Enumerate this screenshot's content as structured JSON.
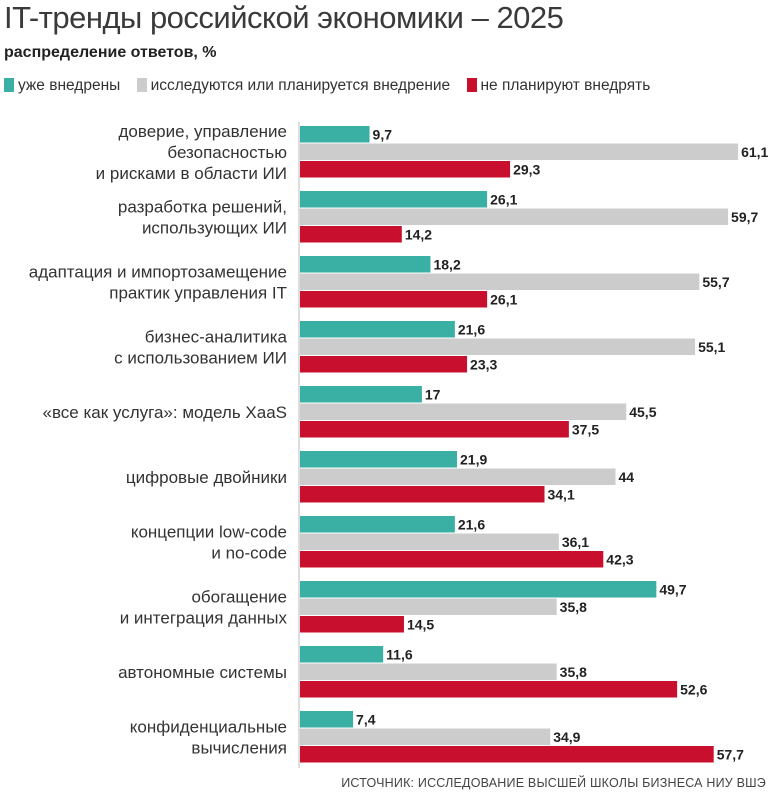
{
  "chart_data": {
    "type": "bar",
    "orientation": "horizontal",
    "title": "IT-тренды российской экономики – 2025",
    "subtitle": "распределение ответов, %",
    "source": "ИСТОЧНИК: ИССЛЕДОВАНИЕ ВЫСШЕЙ ШКОЛЫ БИЗНЕСА НИУ ВШЭ",
    "legend_placement": "top",
    "grid": false,
    "xlim": [
      0,
      65
    ],
    "categories": [
      [
        "доверие, управление",
        "безопасностью",
        "и рисками в области ИИ"
      ],
      [
        "разработка решений,",
        "использующих ИИ"
      ],
      [
        "адаптация и импортозамещение",
        "практик управления IT"
      ],
      [
        "бизнес-аналитика",
        "с использованием ИИ"
      ],
      [
        "«все как услуга»: модель XaaS"
      ],
      [
        "цифровые двойники"
      ],
      [
        "концепции low-code",
        "и no-code"
      ],
      [
        "обогащение",
        "и интеграция данных"
      ],
      [
        "автономные системы"
      ],
      [
        "конфиденциальные",
        "вычисления"
      ]
    ],
    "series": [
      {
        "name": "уже внедрены",
        "color": "#3ab0a5",
        "values": [
          9.7,
          26.1,
          18.2,
          21.6,
          17,
          21.9,
          21.6,
          49.7,
          11.6,
          7.4
        ]
      },
      {
        "name": "исследуются или планируется внедрение",
        "color": "#cccccc",
        "values": [
          61.1,
          59.7,
          55.7,
          55.1,
          45.5,
          44,
          36.1,
          35.8,
          35.8,
          34.9
        ]
      },
      {
        "name": "не планируют внедрять",
        "color": "#c8102e",
        "values": [
          29.3,
          14.2,
          26.1,
          23.3,
          37.5,
          34.1,
          42.3,
          14.5,
          52.6,
          57.7
        ]
      }
    ]
  }
}
